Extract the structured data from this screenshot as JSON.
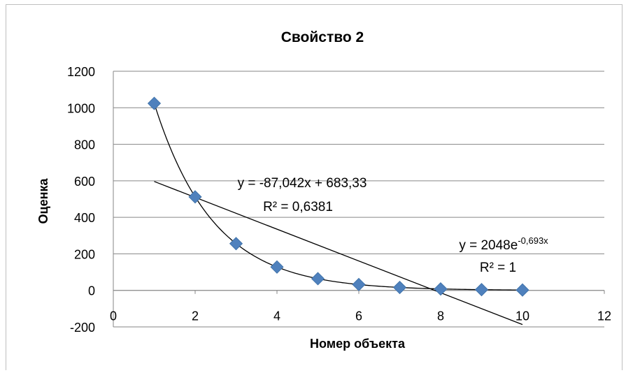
{
  "chart_data": {
    "type": "scatter",
    "title": "Свойство 2",
    "xlabel": "Номер объекта",
    "ylabel": "Оценка",
    "xlim": [
      0,
      12
    ],
    "ylim": [
      -200,
      1200
    ],
    "x_ticks": [
      "0",
      "2",
      "4",
      "6",
      "8",
      "10",
      "12"
    ],
    "y_ticks": [
      "-200",
      "0",
      "200",
      "400",
      "600",
      "800",
      "1000",
      "1200"
    ],
    "grid": "horizontal",
    "legend": "none",
    "marker_color": "#4f81bd",
    "series": [
      {
        "x": [
          1,
          2,
          3,
          4,
          5,
          6,
          7,
          8,
          9,
          10
        ],
        "y": [
          1024,
          512,
          256,
          128,
          64,
          32,
          16,
          8,
          4,
          2
        ]
      }
    ],
    "trendlines": [
      {
        "kind": "linear",
        "slope": -87.042,
        "intercept": 683.33,
        "x_range": [
          1,
          10
        ],
        "equation": "y = -87,042x + 683,33",
        "r2": "R² = 0,6381"
      },
      {
        "kind": "exponential",
        "a": 2048,
        "b": -0.693,
        "x_range": [
          1,
          10
        ],
        "equation_base": "y = 2048e",
        "equation_exp": "-0,693x",
        "r2": "R² = 1"
      }
    ]
  }
}
